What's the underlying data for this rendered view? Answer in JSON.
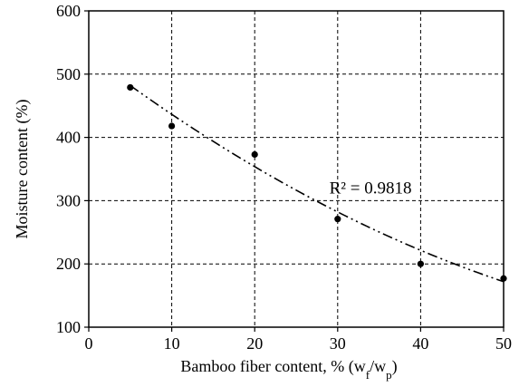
{
  "chart_data": {
    "type": "scatter",
    "xlabel": {
      "main": "Bamboo fiber content, % (w",
      "sub1": "f",
      "mid": "/w",
      "sub2": "p",
      "end": ")"
    },
    "ylabel": "Moisture content (%)",
    "xlim": [
      0,
      50
    ],
    "ylim": [
      100,
      600
    ],
    "x_ticks": [
      0,
      10,
      20,
      30,
      40,
      50
    ],
    "y_ticks": [
      100,
      200,
      300,
      400,
      500,
      600
    ],
    "grid": true,
    "grid_style": "dashed",
    "series": [
      {
        "points": [
          {
            "x": 5,
            "y": 479
          },
          {
            "x": 10,
            "y": 418
          },
          {
            "x": 20,
            "y": 373
          },
          {
            "x": 30,
            "y": 271
          },
          {
            "x": 40,
            "y": 200
          },
          {
            "x": 50,
            "y": 177
          }
        ],
        "marker_color": "#000000"
      }
    ],
    "trendline": {
      "type": "polynomial",
      "style": "dash-dot",
      "color": "#000000",
      "x_range": [
        5,
        50
      ],
      "y_at_5": 482,
      "y_at_50": 172,
      "r_squared_label": "R² = 0.9818"
    }
  }
}
